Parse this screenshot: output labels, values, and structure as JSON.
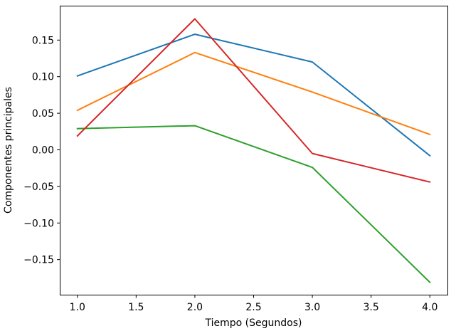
{
  "chart_data": {
    "type": "line",
    "title": "",
    "xlabel": "Tiempo (Segundos)",
    "ylabel": "Componentes principales",
    "x": [
      1.0,
      2.0,
      3.0,
      4.0
    ],
    "xlim": [
      0.85,
      4.15
    ],
    "ylim": [
      -0.198,
      0.197
    ],
    "xticks": [
      1.0,
      1.5,
      2.0,
      2.5,
      3.0,
      3.5,
      4.0
    ],
    "xtick_labels": [
      "1.0",
      "1.5",
      "2.0",
      "2.5",
      "3.0",
      "3.5",
      "4.0"
    ],
    "yticks": [
      -0.15,
      -0.1,
      -0.05,
      0.0,
      0.05,
      0.1,
      0.15
    ],
    "ytick_labels": [
      "−0.15",
      "−0.10",
      "−0.05",
      "0.00",
      "0.05",
      "0.10",
      "0.15"
    ],
    "grid": false,
    "legend": false,
    "series": [
      {
        "color": "#1f77b4",
        "values": [
          0.101,
          0.158,
          0.12,
          -0.008
        ]
      },
      {
        "color": "#ff7f0e",
        "values": [
          0.054,
          0.133,
          0.079,
          0.021
        ]
      },
      {
        "color": "#2ca02c",
        "values": [
          0.029,
          0.033,
          -0.024,
          -0.181
        ]
      },
      {
        "color": "#d62728",
        "values": [
          0.019,
          0.179,
          -0.005,
          -0.044
        ]
      }
    ]
  }
}
